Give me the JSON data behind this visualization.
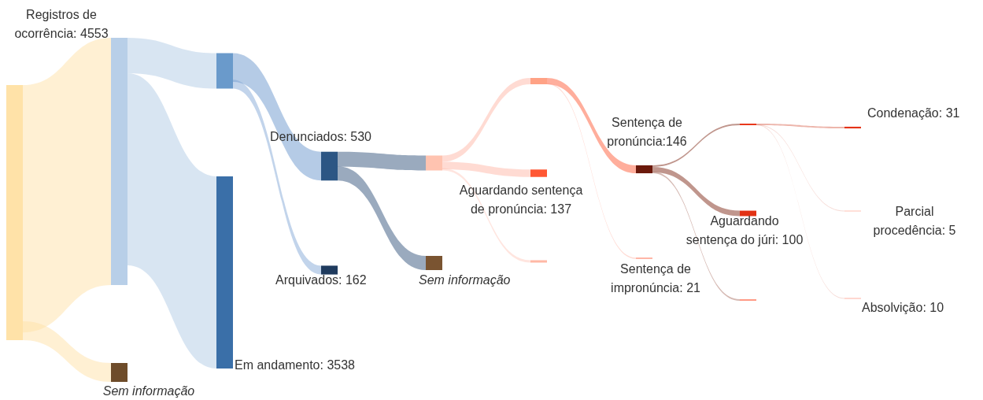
{
  "chart_data": {
    "type": "other",
    "categories": [
      null,
      "Registros de ocorrência",
      "Sem informação",
      null,
      "Em andamento",
      "Denunciados",
      "Arquivados",
      null,
      "Sem informação",
      null,
      "Aguardando sentença de pronúncia",
      null,
      "Sentença de pronúncia",
      "Sentença de impronúncia",
      null,
      "Aguardando sentença do júri",
      null,
      "Condenação",
      "Parcial procedência",
      "Absolvição"
    ],
    "values": [
      null,
      4553,
      null,
      null,
      3538,
      530,
      162,
      null,
      null,
      null,
      137,
      null,
      146,
      21,
      null,
      100,
      null,
      31,
      5,
      10
    ],
    "value_labels": [
      null,
      ": 4553",
      null,
      null,
      ": 3538",
      ": 530",
      ": 162",
      null,
      null,
      null,
      ": 137",
      null,
      ":146",
      ": 21",
      null,
      ": 100",
      null,
      ": 31",
      ": 5",
      ": 10"
    ],
    "colors": [
      "#ffe2a8",
      "#b8cfe8",
      "#6e4c2a",
      "#6a9acb",
      "#3a6fa8",
      "#2c5684",
      "#1f3b5e",
      "#ffc3b0",
      "#7a5431",
      "#ffa285",
      "#ff5733",
      "#ffb8a5",
      "#6b190b",
      "#ff9a85",
      "#e8381c",
      "#e23214",
      "#ff9a85",
      "#e43318",
      "#ffc0b0",
      "#ffb0a0"
    ]
  }
}
